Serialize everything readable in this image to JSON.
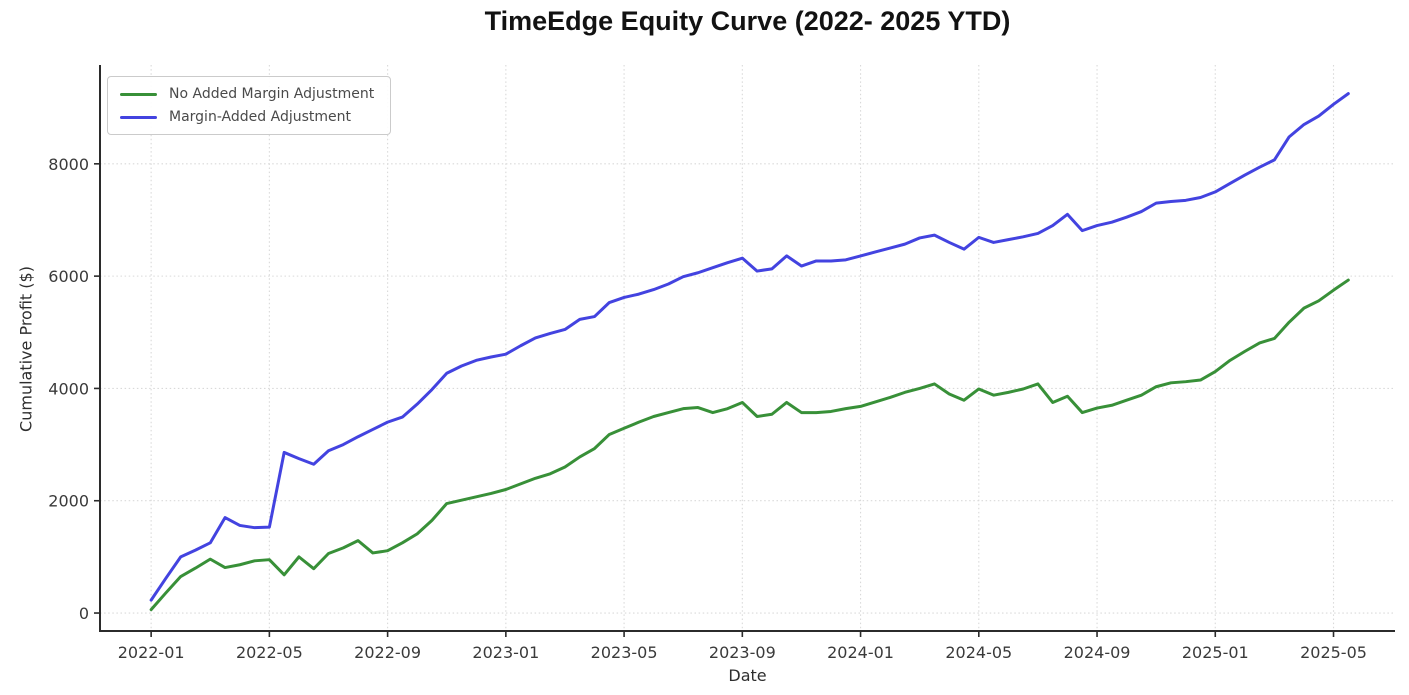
{
  "chart_data": {
    "type": "line",
    "title": "TimeEdge Equity Curve (2022- 2025 YTD)",
    "xlabel": "Date",
    "ylabel": "Cumulative Profit ($)",
    "x_start_month": "2022-01",
    "x_step_months": 0.5,
    "x_tick_labels": [
      "2022-01",
      "2022-05",
      "2022-09",
      "2023-01",
      "2023-05",
      "2023-09",
      "2024-01",
      "2024-05",
      "2024-09",
      "2025-01",
      "2025-05"
    ],
    "x_tick_month_offsets": [
      0,
      4,
      8,
      12,
      16,
      20,
      24,
      28,
      32,
      36,
      40
    ],
    "y_ticks": [
      0,
      2000,
      4000,
      6000,
      8000
    ],
    "y_tick_labels": [
      "0",
      "2000",
      "4000",
      "6000",
      "8000"
    ],
    "ylim": [
      -320,
      9760
    ],
    "xlim_months": [
      -1.73,
      42.08
    ],
    "grid": "dotted, both axes",
    "legend_position": "upper left",
    "axis_color": "#2b2b2b",
    "gridline_color": "#d9d9d9",
    "series": [
      {
        "name": "No Added Margin Adjustment",
        "color": "#389038",
        "values": [
          60,
          360,
          650,
          800,
          960,
          810,
          860,
          930,
          950,
          680,
          1000,
          790,
          1060,
          1160,
          1290,
          1070,
          1110,
          1250,
          1410,
          1650,
          1950,
          2010,
          2070,
          2130,
          2200,
          2300,
          2400,
          2480,
          2600,
          2780,
          2930,
          3180,
          3290,
          3400,
          3500,
          3570,
          3640,
          3660,
          3570,
          3640,
          3750,
          3500,
          3540,
          3750,
          3570,
          3570,
          3590,
          3640,
          3680,
          3760,
          3840,
          3930,
          4000,
          4080,
          3900,
          3790,
          3990,
          3880,
          3930,
          3990,
          4080,
          3750,
          3860,
          3570,
          3650,
          3700,
          3790,
          3880,
          4030,
          4100,
          4120,
          4150,
          4300,
          4500,
          4660,
          4810,
          4890,
          5180,
          5430,
          5560,
          5750,
          5930
        ]
      },
      {
        "name": "Margin-Added Adjustment",
        "color": "#4343e0",
        "values": [
          230,
          620,
          1000,
          1120,
          1250,
          1700,
          1560,
          1520,
          1530,
          2860,
          2750,
          2650,
          2890,
          3000,
          3140,
          3270,
          3400,
          3490,
          3720,
          3980,
          4270,
          4400,
          4500,
          4560,
          4610,
          4760,
          4900,
          4980,
          5050,
          5230,
          5280,
          5530,
          5620,
          5680,
          5760,
          5860,
          5990,
          6060,
          6150,
          6240,
          6320,
          6090,
          6130,
          6360,
          6180,
          6270,
          6270,
          6290,
          6360,
          6430,
          6500,
          6570,
          6680,
          6730,
          6600,
          6480,
          6690,
          6600,
          6650,
          6700,
          6760,
          6900,
          7100,
          6810,
          6900,
          6960,
          7050,
          7150,
          7300,
          7330,
          7350,
          7400,
          7500,
          7650,
          7800,
          7940,
          8070,
          8480,
          8700,
          8850,
          9060,
          9250
        ]
      }
    ]
  }
}
